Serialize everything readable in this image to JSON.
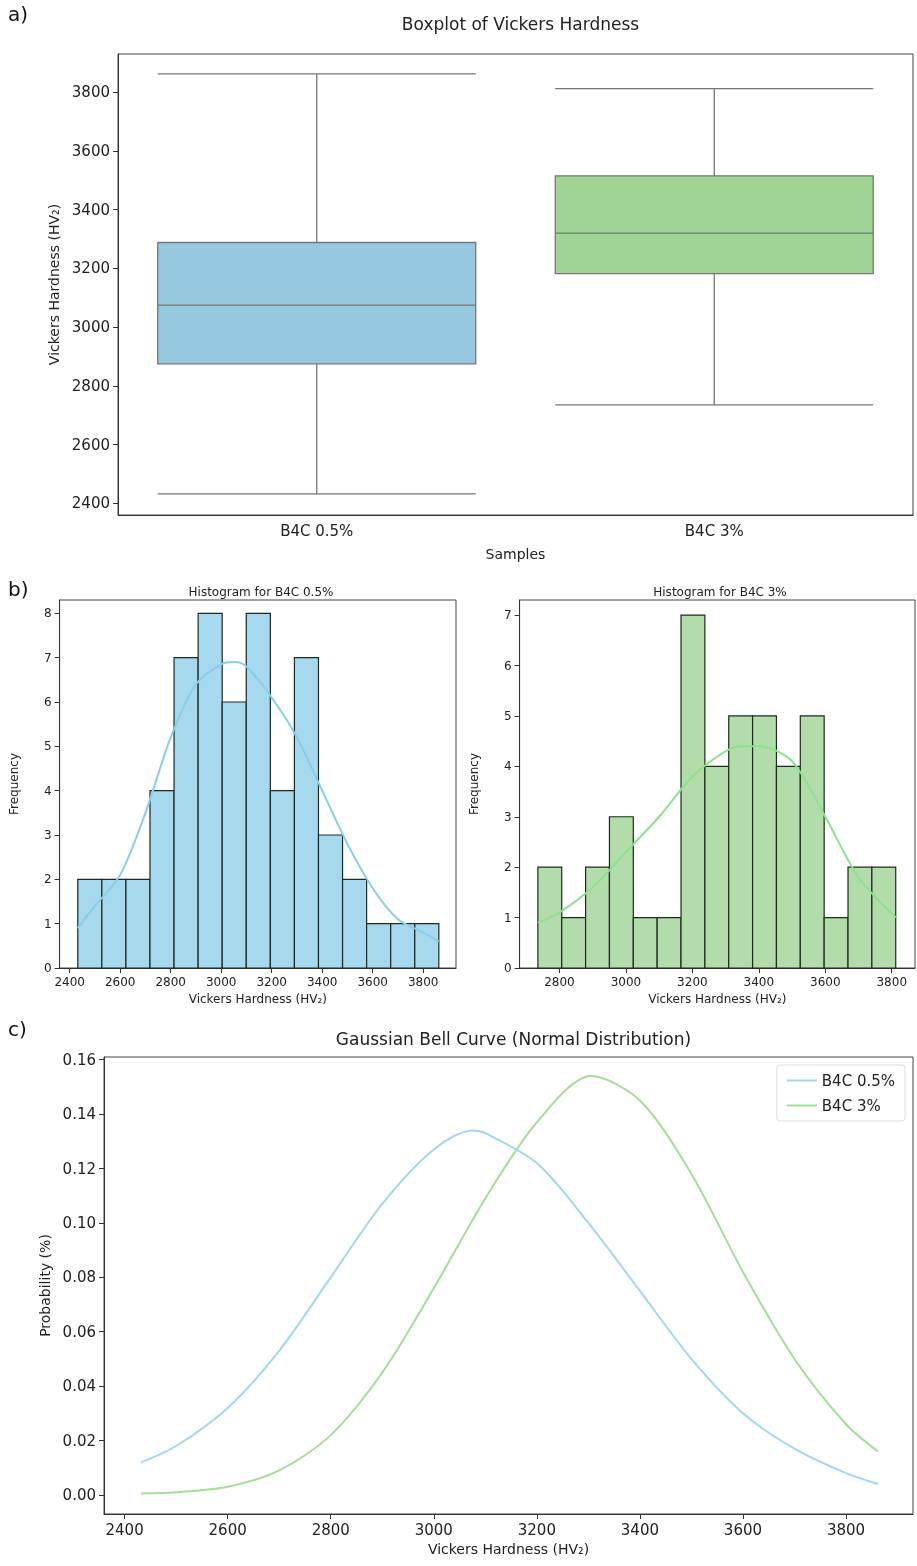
{
  "chart_data": [
    {
      "type": "box",
      "title": "Boxplot of Vickers Hardness",
      "xlabel": "Samples",
      "ylabel": "Vickers Hardness (HV₂)",
      "annotations": [
        "a)"
      ],
      "categories": [
        "B4C 0.5%",
        "B4C 3%"
      ],
      "colors": [
        "#96c8df",
        "#9fd494"
      ],
      "boxes": [
        {
          "low": 2432,
          "q1": 2875,
          "median": 3075,
          "q3": 3288,
          "high": 3862
        },
        {
          "low": 2735,
          "q1": 3182,
          "median": 3320,
          "q3": 3515,
          "high": 3812
        }
      ],
      "ylim": [
        2360,
        3930
      ],
      "yticks": [
        2400,
        2600,
        2800,
        3000,
        3200,
        3400,
        3600,
        3800
      ]
    },
    {
      "type": "histogram",
      "title": "Histogram for B4C 0.5%",
      "xlabel": "Vickers Hardness (HV₂)",
      "ylabel": "Frequency",
      "annotations": [
        "b)"
      ],
      "series": [
        {
          "type": "histogram",
          "color": "#a6d8ee",
          "bins": [
            2432,
            2527.3,
            2622.7,
            2718,
            2813.3,
            2908.7,
            3004,
            3099.3,
            3194.7,
            3290,
            3385.3,
            3480.7,
            3576,
            3671.3,
            3766.7,
            3862
          ],
          "values": [
            2,
            2,
            2,
            4,
            7,
            8,
            6,
            8,
            4,
            7,
            3,
            2,
            1,
            1,
            1
          ]
        },
        {
          "type": "line",
          "color": "#87ceeb",
          "x": [
            2432,
            2500,
            2600,
            2700,
            2800,
            2900,
            3000,
            3050,
            3100,
            3200,
            3300,
            3400,
            3500,
            3600,
            3700,
            3800,
            3862
          ],
          "values": [
            0.9,
            1.4,
            2.1,
            3.5,
            5.2,
            6.4,
            6.85,
            6.9,
            6.8,
            6.1,
            5.2,
            4.0,
            2.8,
            1.8,
            1.1,
            0.8,
            0.6
          ]
        }
      ],
      "xlim": [
        2360,
        3930
      ],
      "xticks": [
        2400,
        2600,
        2800,
        3000,
        3200,
        3400,
        3600,
        3800
      ],
      "ylim": [
        0,
        8.3
      ],
      "yticks": [
        0,
        1,
        2,
        3,
        4,
        5,
        6,
        7,
        8
      ]
    },
    {
      "type": "histogram",
      "title": "Histogram for B4C 3%",
      "xlabel": "Vickers Hardness (HV₂)",
      "ylabel": "Frequency",
      "series": [
        {
          "type": "histogram",
          "color": "#b2dcaa",
          "bins": [
            2735,
            2806.8,
            2878.6,
            2950.4,
            3022.2,
            3094,
            3165.8,
            3237.6,
            3309.4,
            3381.2,
            3453,
            3524.8,
            3596.6,
            3668.4,
            3740.2,
            3812
          ],
          "values": [
            2,
            1,
            2,
            3,
            1,
            1,
            7,
            4,
            5,
            5,
            4,
            5,
            1,
            2,
            2
          ]
        },
        {
          "type": "line",
          "color": "#90e090",
          "x": [
            2735,
            2800,
            2900,
            3000,
            3100,
            3200,
            3300,
            3350,
            3400,
            3500,
            3600,
            3700,
            3812
          ],
          "values": [
            0.9,
            1.1,
            1.6,
            2.3,
            3.0,
            3.8,
            4.3,
            4.4,
            4.4,
            4.1,
            3.0,
            1.8,
            1.0
          ]
        }
      ],
      "xlim": [
        2680,
        3870
      ],
      "xticks": [
        2800,
        3000,
        3200,
        3400,
        3600,
        3800
      ],
      "ylim": [
        0,
        7.3
      ],
      "yticks": [
        0,
        1,
        2,
        3,
        4,
        5,
        6,
        7
      ]
    },
    {
      "type": "line",
      "title": "Gaussian Bell Curve (Normal Distribution)",
      "xlabel": "Vickers Hardness (HV₂)",
      "ylabel": "Probability (%)",
      "annotations": [
        "c)"
      ],
      "legend": "top right",
      "series": [
        {
          "name": "B4C 0.5%",
          "color": "#a3d7ee",
          "x": [
            2432,
            2500,
            2600,
            2700,
            2800,
            2900,
            3000,
            3075,
            3100,
            3200,
            3300,
            3400,
            3500,
            3600,
            3700,
            3800,
            3862
          ],
          "values": [
            0.012,
            0.018,
            0.032,
            0.053,
            0.08,
            0.107,
            0.127,
            0.134,
            0.133,
            0.122,
            0.1,
            0.075,
            0.05,
            0.03,
            0.017,
            0.008,
            0.004
          ]
        },
        {
          "name": "B4C 3%",
          "color": "#a6dd9a",
          "x": [
            2432,
            2500,
            2600,
            2700,
            2800,
            2900,
            3000,
            3100,
            3200,
            3305,
            3400,
            3500,
            3600,
            3700,
            3800,
            3862
          ],
          "values": [
            0.0005,
            0.001,
            0.003,
            0.009,
            0.022,
            0.045,
            0.076,
            0.109,
            0.137,
            0.154,
            0.145,
            0.118,
            0.082,
            0.05,
            0.026,
            0.016
          ]
        }
      ],
      "xlim": [
        2360,
        3930
      ],
      "xticks": [
        2400,
        2600,
        2800,
        3000,
        3200,
        3400,
        3600,
        3800
      ],
      "ylim": [
        -0.007,
        0.161
      ],
      "yticks": [
        {
          "value": 0,
          "label": "0.00"
        },
        {
          "value": 0.02,
          "label": "0.02"
        },
        {
          "value": 0.04,
          "label": "0.04"
        },
        {
          "value": 0.06,
          "label": "0.06"
        },
        {
          "value": 0.08,
          "label": "0.08"
        },
        {
          "value": 0.1,
          "label": "0.10"
        },
        {
          "value": 0.12,
          "label": "0.12"
        },
        {
          "value": 0.14,
          "label": "0.14"
        },
        {
          "value": 0.16,
          "label": "0.16"
        }
      ]
    }
  ]
}
